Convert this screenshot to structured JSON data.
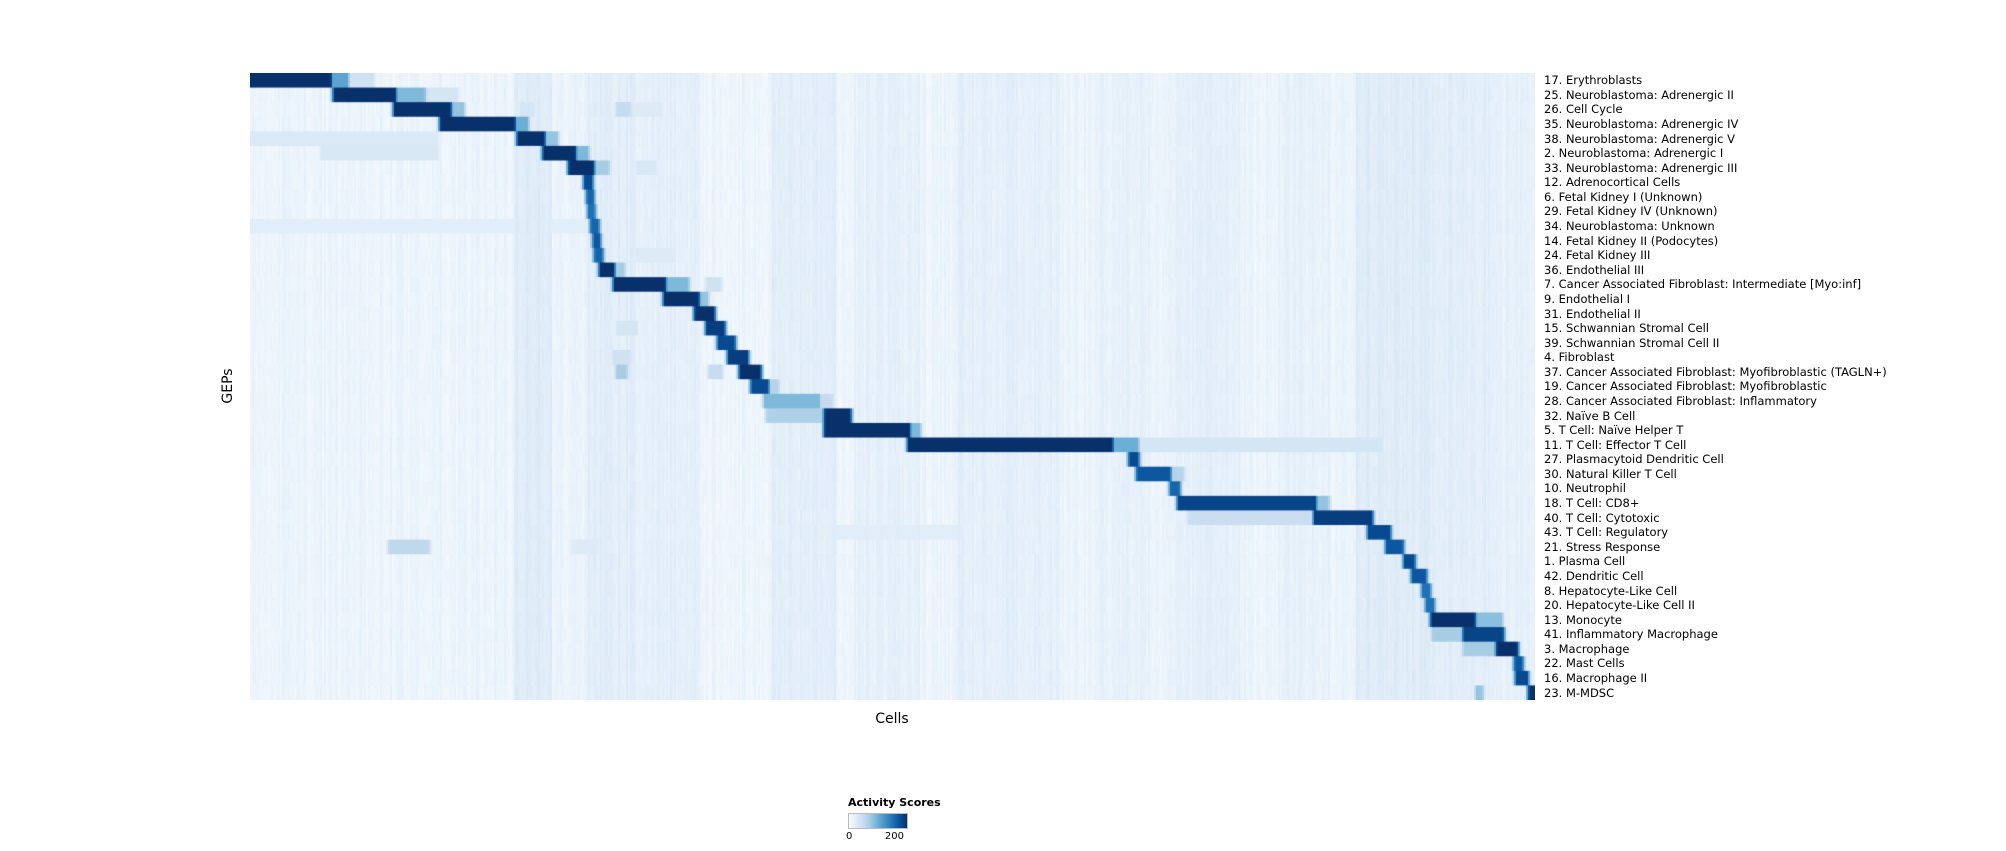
{
  "chart_data": {
    "type": "heatmap",
    "title": "",
    "xlabel": "Cells",
    "ylabel": "GEPs",
    "legend_position": "bottom-center",
    "colorbar": {
      "label": "Activity Scores",
      "min": 0,
      "max": 200,
      "colormap": "Blues"
    },
    "colormap_stops": [
      "#f7fbff",
      "#deebf7",
      "#c6dbef",
      "#9ecae1",
      "#6baed6",
      "#4292c6",
      "#2171b5",
      "#08519c",
      "#08306b"
    ],
    "value_range": [
      0,
      200
    ],
    "background": {
      "base": 4,
      "column_noise": 9,
      "cell_noise": 5,
      "edge_soft": 0.004,
      "column_bands": [
        [
          0.205,
          0.235,
          13
        ],
        [
          0.26,
          0.3,
          10
        ],
        [
          0.3,
          0.35,
          8
        ],
        [
          0.405,
          0.455,
          10
        ],
        [
          0.47,
          0.52,
          6
        ],
        [
          0.55,
          0.63,
          8
        ],
        [
          0.66,
          0.7,
          5
        ],
        [
          0.72,
          0.77,
          7
        ],
        [
          0.8,
          0.84,
          5
        ],
        [
          0.86,
          0.92,
          13
        ],
        [
          0.92,
          0.97,
          10
        ],
        [
          0.97,
          1.0,
          6
        ]
      ]
    },
    "rows": [
      {
        "label": "17. Erythroblasts",
        "segments": [
          [
            0.0,
            0.062,
            200
          ],
          [
            0.062,
            0.075,
            110
          ],
          [
            0.075,
            0.095,
            40
          ]
        ]
      },
      {
        "label": "25. Neuroblastoma: Adrenergic II",
        "segments": [
          [
            0.065,
            0.112,
            200
          ],
          [
            0.112,
            0.135,
            90
          ],
          [
            0.135,
            0.16,
            35
          ]
        ]
      },
      {
        "label": "26. Cell Cycle",
        "segments": [
          [
            0.112,
            0.155,
            200
          ],
          [
            0.155,
            0.165,
            80
          ],
          [
            0.21,
            0.22,
            35
          ],
          [
            0.285,
            0.295,
            50
          ],
          [
            0.3,
            0.32,
            25
          ]
        ]
      },
      {
        "label": "35. Neuroblastoma: Adrenergic IV",
        "segments": [
          [
            0.148,
            0.205,
            200
          ],
          [
            0.205,
            0.215,
            100
          ]
        ]
      },
      {
        "label": "38. Neuroblastoma: Adrenergic V",
        "segments": [
          [
            0.0,
            0.145,
            28
          ],
          [
            0.208,
            0.228,
            200
          ],
          [
            0.228,
            0.238,
            80
          ]
        ]
      },
      {
        "label": "2. Neuroblastoma: Adrenergic I",
        "segments": [
          [
            0.055,
            0.145,
            30
          ],
          [
            0.228,
            0.252,
            200
          ],
          [
            0.252,
            0.262,
            90
          ]
        ]
      },
      {
        "label": "33. Neuroblastoma: Adrenergic III",
        "segments": [
          [
            0.248,
            0.266,
            200
          ],
          [
            0.266,
            0.278,
            70
          ],
          [
            0.3,
            0.315,
            30
          ]
        ]
      },
      {
        "label": "12. Adrenocortical Cells",
        "segments": [
          [
            0.26,
            0.265,
            180
          ]
        ]
      },
      {
        "label": "6. Fetal Kidney I (Unknown)",
        "segments": [
          [
            0.262,
            0.266,
            160
          ]
        ]
      },
      {
        "label": "29. Fetal Kidney IV (Unknown)",
        "segments": [
          [
            0.263,
            0.267,
            150
          ]
        ]
      },
      {
        "label": "34. Neuroblastoma: Unknown",
        "segments": [
          [
            0.0,
            0.26,
            22
          ],
          [
            0.265,
            0.27,
            160
          ]
        ]
      },
      {
        "label": "14. Fetal Kidney II (Podocytes)",
        "segments": [
          [
            0.267,
            0.271,
            170
          ]
        ]
      },
      {
        "label": "24. Fetal Kidney III",
        "segments": [
          [
            0.268,
            0.273,
            160
          ],
          [
            0.3,
            0.33,
            25
          ]
        ]
      },
      {
        "label": "36. Endothelial III",
        "segments": [
          [
            0.272,
            0.282,
            200
          ],
          [
            0.282,
            0.29,
            70
          ]
        ]
      },
      {
        "label": "7. Cancer Associated Fibroblast: Intermediate [Myo:inf]",
        "segments": [
          [
            0.283,
            0.322,
            200
          ],
          [
            0.322,
            0.34,
            90
          ],
          [
            0.355,
            0.365,
            40
          ]
        ]
      },
      {
        "label": "9. Endothelial I",
        "segments": [
          [
            0.322,
            0.348,
            200
          ],
          [
            0.348,
            0.355,
            80
          ]
        ]
      },
      {
        "label": "31. Endothelial II",
        "segments": [
          [
            0.346,
            0.36,
            200
          ]
        ]
      },
      {
        "label": "15. Schwannian Stromal Cell",
        "segments": [
          [
            0.285,
            0.3,
            35
          ],
          [
            0.355,
            0.368,
            190
          ]
        ]
      },
      {
        "label": "39. Schwannian Stromal Cell II",
        "segments": [
          [
            0.364,
            0.376,
            180
          ]
        ]
      },
      {
        "label": "4. Fibroblast",
        "segments": [
          [
            0.282,
            0.295,
            40
          ],
          [
            0.372,
            0.386,
            190
          ]
        ]
      },
      {
        "label": "37. Cancer Associated Fibroblast: Myofibroblastic (TAGLN+)",
        "segments": [
          [
            0.285,
            0.292,
            70
          ],
          [
            0.357,
            0.366,
            50
          ],
          [
            0.381,
            0.396,
            200
          ]
        ]
      },
      {
        "label": "19. Cancer Associated Fibroblast: Myofibroblastic",
        "segments": [
          [
            0.39,
            0.402,
            180
          ],
          [
            0.402,
            0.41,
            60
          ]
        ]
      },
      {
        "label": "28. Cancer Associated Fibroblast: Inflammatory",
        "segments": [
          [
            0.4,
            0.442,
            90
          ],
          [
            0.442,
            0.452,
            50
          ]
        ]
      },
      {
        "label": "32. Naïve B Cell",
        "segments": [
          [
            0.402,
            0.447,
            65
          ],
          [
            0.447,
            0.466,
            200
          ]
        ]
      },
      {
        "label": "5. T Cell: Naïve Helper T",
        "segments": [
          [
            0.447,
            0.512,
            200
          ],
          [
            0.512,
            0.52,
            90
          ]
        ]
      },
      {
        "label": "11. T Cell: Effector T Cell",
        "segments": [
          [
            0.512,
            0.67,
            200
          ],
          [
            0.67,
            0.69,
            100
          ],
          [
            0.69,
            0.88,
            35
          ]
        ]
      },
      {
        "label": "27. Plasmacytoid Dendritic Cell",
        "segments": [
          [
            0.684,
            0.69,
            180
          ]
        ]
      },
      {
        "label": "30. Natural Killer T Cell",
        "segments": [
          [
            0.69,
            0.715,
            170
          ],
          [
            0.715,
            0.725,
            60
          ]
        ]
      },
      {
        "label": "10. Neutrophil",
        "segments": [
          [
            0.716,
            0.722,
            160
          ]
        ]
      },
      {
        "label": "18. T Cell: CD8+",
        "segments": [
          [
            0.722,
            0.828,
            185
          ],
          [
            0.828,
            0.838,
            80
          ]
        ]
      },
      {
        "label": "40. T Cell: Cytotoxic",
        "segments": [
          [
            0.73,
            0.828,
            45
          ],
          [
            0.828,
            0.872,
            190
          ]
        ]
      },
      {
        "label": "43. T Cell: Regulatory",
        "segments": [
          [
            0.45,
            0.55,
            22
          ],
          [
            0.87,
            0.886,
            180
          ]
        ]
      },
      {
        "label": "21. Stress Response",
        "segments": [
          [
            0.108,
            0.138,
            55
          ],
          [
            0.25,
            0.27,
            25
          ],
          [
            0.884,
            0.896,
            170
          ]
        ]
      },
      {
        "label": "1. Plasma Cell",
        "segments": [
          [
            0.898,
            0.905,
            180
          ]
        ]
      },
      {
        "label": "42. Dendritic Cell",
        "segments": [
          [
            0.904,
            0.914,
            170
          ]
        ]
      },
      {
        "label": "8. Hepatocyte-Like Cell",
        "segments": [
          [
            0.912,
            0.917,
            150
          ]
        ]
      },
      {
        "label": "20. Hepatocyte-Like Cell II",
        "segments": [
          [
            0.915,
            0.92,
            150
          ]
        ]
      },
      {
        "label": "13. Monocyte",
        "segments": [
          [
            0.919,
            0.952,
            200
          ],
          [
            0.952,
            0.973,
            85
          ]
        ]
      },
      {
        "label": "41. Inflammatory Macrophage",
        "segments": [
          [
            0.92,
            0.944,
            70
          ],
          [
            0.944,
            0.974,
            185
          ]
        ]
      },
      {
        "label": "3. Macrophage",
        "segments": [
          [
            0.944,
            0.97,
            70
          ],
          [
            0.97,
            0.985,
            200
          ]
        ]
      },
      {
        "label": "22. Mast Cells",
        "segments": [
          [
            0.984,
            0.989,
            170
          ]
        ]
      },
      {
        "label": "16. Macrophage II",
        "segments": [
          [
            0.985,
            0.993,
            180
          ]
        ]
      },
      {
        "label": "23. M-MDSC",
        "segments": [
          [
            0.954,
            0.958,
            80
          ],
          [
            0.995,
            1.0,
            200
          ]
        ]
      }
    ]
  }
}
